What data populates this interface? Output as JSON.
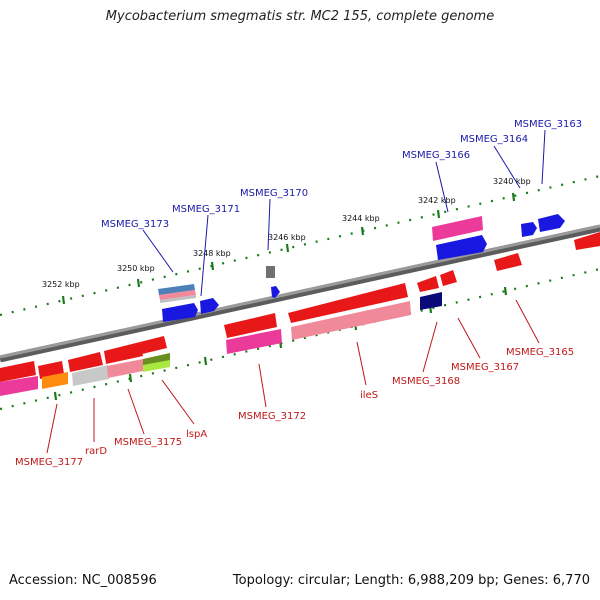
{
  "title": "Mycobacterium smegmatis str. MC2 155, complete genome",
  "footer": {
    "accession": "Accession: NC_008596",
    "stats": "Topology: circular; Length: 6,988,209 bp; Genes: 6,770"
  },
  "colors": {
    "backbone": "#8a8a8a",
    "tick": "#1a7a1a",
    "top_label": "#1a1aa8",
    "bottom_label": "#c01818"
  },
  "scale_labels": [
    "3252 kbp",
    "3250 kbp",
    "3248 kbp",
    "3246 kbp",
    "3244 kbp",
    "3242 kbp",
    "3240 kbp"
  ],
  "top_gene_labels": [
    "MSMEG_3173",
    "MSMEG_3171",
    "MSMEG_3170",
    "MSMEG_3166",
    "MSMEG_3164",
    "MSMEG_3163"
  ],
  "bottom_gene_labels": [
    "MSMEG_3177",
    "rarD",
    "MSMEG_3175",
    "lspA",
    "MSMEG_3172",
    "ileS",
    "MSMEG_3168",
    "MSMEG_3167",
    "MSMEG_3165"
  ]
}
